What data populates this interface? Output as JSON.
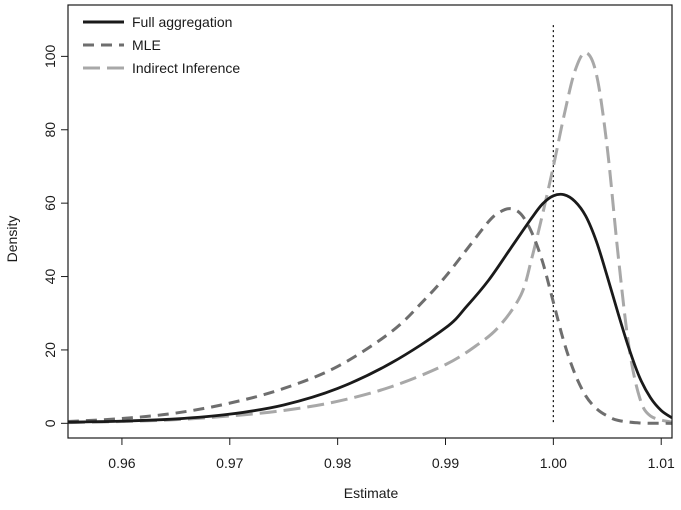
{
  "chart_data": {
    "type": "line",
    "title": "",
    "xlabel": "Estimate",
    "ylabel": "Density",
    "xlim": [
      0.955,
      1.011
    ],
    "ylim": [
      -4,
      114
    ],
    "x_ticks": [
      0.96,
      0.97,
      0.98,
      0.99,
      1.0,
      1.01
    ],
    "x_tick_labels": [
      "0.96",
      "0.97",
      "0.98",
      "0.99",
      "1.00",
      "1.01"
    ],
    "y_ticks": [
      0,
      20,
      40,
      60,
      80,
      100
    ],
    "y_tick_labels": [
      "0",
      "20",
      "40",
      "60",
      "80",
      "100"
    ],
    "grid": false,
    "legend_position": "top-left",
    "reference_line": {
      "x": 1.0,
      "style": "dotted"
    },
    "series": [
      {
        "name": "Full aggregation",
        "color": "#1a1a1a",
        "dash": "solid",
        "x": [
          0.955,
          0.96,
          0.965,
          0.97,
          0.975,
          0.98,
          0.985,
          0.99,
          0.992,
          0.994,
          0.996,
          0.998,
          0.999,
          1.0,
          1.001,
          1.002,
          1.003,
          1.004,
          1.005,
          1.006,
          1.007,
          1.008,
          1.009,
          1.01,
          1.011
        ],
        "y": [
          0.3,
          0.6,
          1.2,
          2.5,
          5.0,
          9.5,
          16.5,
          26.0,
          32.0,
          39.0,
          47.5,
          56.0,
          59.8,
          62.0,
          62.3,
          60.5,
          56.5,
          49.5,
          40.0,
          30.0,
          20.5,
          12.5,
          7.0,
          3.5,
          1.5
        ]
      },
      {
        "name": "MLE",
        "color": "#6e6e6e",
        "dash": "long-dash",
        "x": [
          0.955,
          0.96,
          0.965,
          0.97,
          0.975,
          0.98,
          0.985,
          0.988,
          0.99,
          0.992,
          0.994,
          0.995,
          0.996,
          0.997,
          0.998,
          0.999,
          1.0,
          1.001,
          1.002,
          1.003,
          1.004,
          1.005,
          1.006,
          1.008,
          1.011
        ],
        "y": [
          0.5,
          1.3,
          2.8,
          5.5,
          9.5,
          15.5,
          25.0,
          33.5,
          40.0,
          47.5,
          55.0,
          57.5,
          58.5,
          57.0,
          52.0,
          44.0,
          33.0,
          22.0,
          13.5,
          7.5,
          4.0,
          2.0,
          0.8,
          0.1,
          0.0
        ]
      },
      {
        "name": "Indirect Inference",
        "color": "#a8a8a8",
        "dash": "very-long-dash",
        "x": [
          0.955,
          0.96,
          0.965,
          0.97,
          0.975,
          0.98,
          0.985,
          0.99,
          0.993,
          0.995,
          0.997,
          0.998,
          0.999,
          1.0,
          1.001,
          1.002,
          1.003,
          1.004,
          1.005,
          1.006,
          1.007,
          1.008,
          1.009,
          1.011
        ],
        "y": [
          0.2,
          0.5,
          1.0,
          2.0,
          3.5,
          6.0,
          10.0,
          16.0,
          21.5,
          26.5,
          35.0,
          45.0,
          57.0,
          70.0,
          84.0,
          96.0,
          101.0,
          95.0,
          75.0,
          46.0,
          21.0,
          7.0,
          2.0,
          0.3
        ]
      }
    ]
  }
}
